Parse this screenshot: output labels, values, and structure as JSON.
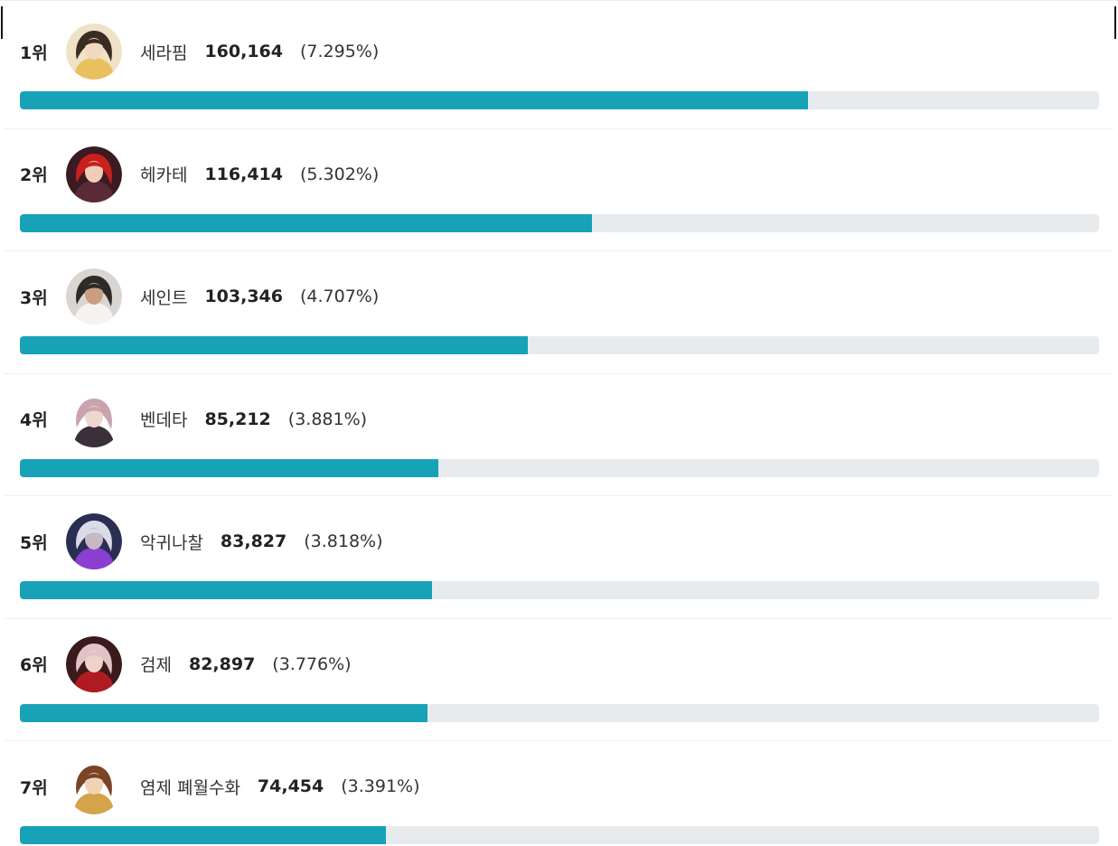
{
  "colors": {
    "bar_fill": "#17a2b8",
    "bar_track": "#e8ebee"
  },
  "ranking": {
    "items": [
      {
        "rank": "1위",
        "name": "세라핌",
        "count": "160,164",
        "percent": "(7.295%)",
        "bar_fraction": 0.73,
        "avatar_colors": {
          "bg": "#efe2c6",
          "hair": "#3a2c22",
          "skin": "#f3d8c0",
          "accent": "#e9c060"
        }
      },
      {
        "rank": "2위",
        "name": "헤카테",
        "count": "116,414",
        "percent": "(5.302%)",
        "bar_fraction": 0.53,
        "avatar_colors": {
          "bg": "#3b1a22",
          "hair": "#c8201c",
          "skin": "#f2cdb6",
          "accent": "#5a2a36"
        }
      },
      {
        "rank": "3위",
        "name": "세인트",
        "count": "103,346",
        "percent": "(4.707%)",
        "bar_fraction": 0.471,
        "avatar_colors": {
          "bg": "#d9d6d2",
          "hair": "#2e2a28",
          "skin": "#c99e82",
          "accent": "#f5f3ef"
        }
      },
      {
        "rank": "4위",
        "name": "벤데타",
        "count": "85,212",
        "percent": "(3.881%)",
        "bar_fraction": 0.388,
        "avatar_colors": {
          "bg": "#ffffff",
          "hair": "#c9a3ad",
          "skin": "#efd6cf",
          "accent": "#3b2f3a"
        }
      },
      {
        "rank": "5위",
        "name": "악귀나찰",
        "count": "83,827",
        "percent": "(3.818%)",
        "bar_fraction": 0.382,
        "avatar_colors": {
          "bg": "#2a2e52",
          "hair": "#d9dbe6",
          "skin": "#c6b9c4",
          "accent": "#8a3fd0"
        }
      },
      {
        "rank": "6위",
        "name": "검제",
        "count": "82,897",
        "percent": "(3.776%)",
        "bar_fraction": 0.378,
        "avatar_colors": {
          "bg": "#3a1a1a",
          "hair": "#e1c2c6",
          "skin": "#f0d2c8",
          "accent": "#b01a22"
        }
      },
      {
        "rank": "7위",
        "name": "염제 폐월수화",
        "count": "74,454",
        "percent": "(3.391%)",
        "bar_fraction": 0.339,
        "avatar_colors": {
          "bg": "#ffffff",
          "hair": "#7a4426",
          "skin": "#f2d2b4",
          "accent": "#d4a34a"
        }
      }
    ]
  }
}
